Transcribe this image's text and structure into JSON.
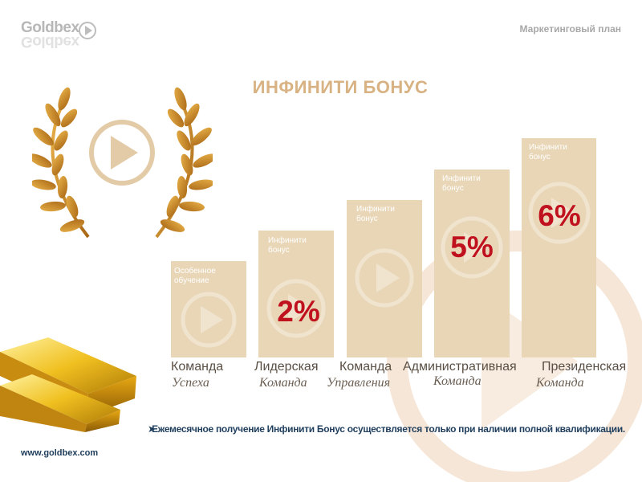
{
  "header": {
    "logo_text": "Goldbex",
    "section": "Маркетинговый план"
  },
  "title": "ИНФИНИТИ БОНУС",
  "steps": [
    {
      "bar_label": "Особенное обучение",
      "percent": "",
      "tier_line1": "Команда",
      "tier_line2": "Успеха"
    },
    {
      "bar_label": "Инфинити бонус",
      "percent": "2%",
      "tier_line1": "Лидерская",
      "tier_line2": "Команда"
    },
    {
      "bar_label": "Инфинити бонус",
      "percent": "",
      "tier_line1": "Команда",
      "tier_line2": "Управления"
    },
    {
      "bar_label": "Инфинити бонус",
      "percent": "5%",
      "tier_line1": "Административная",
      "tier_line2": "Команда"
    },
    {
      "bar_label": "Инфинити бонус",
      "percent": "6%",
      "tier_line1": "Президенская",
      "tier_line2": "Команда"
    }
  ],
  "note": "Ежемесячное получение Инфинити Бонус осуществляется только при наличии полной квалификации.",
  "footer": {
    "url": "www.goldbex.com"
  },
  "colors": {
    "gold": "#d8b282",
    "bar": "#e8d6b7",
    "percent": "#c0111f",
    "note": "#1f3e5d"
  },
  "icons": [
    "laurel-wreath-icon",
    "play-icon",
    "gold-bars-image"
  ]
}
